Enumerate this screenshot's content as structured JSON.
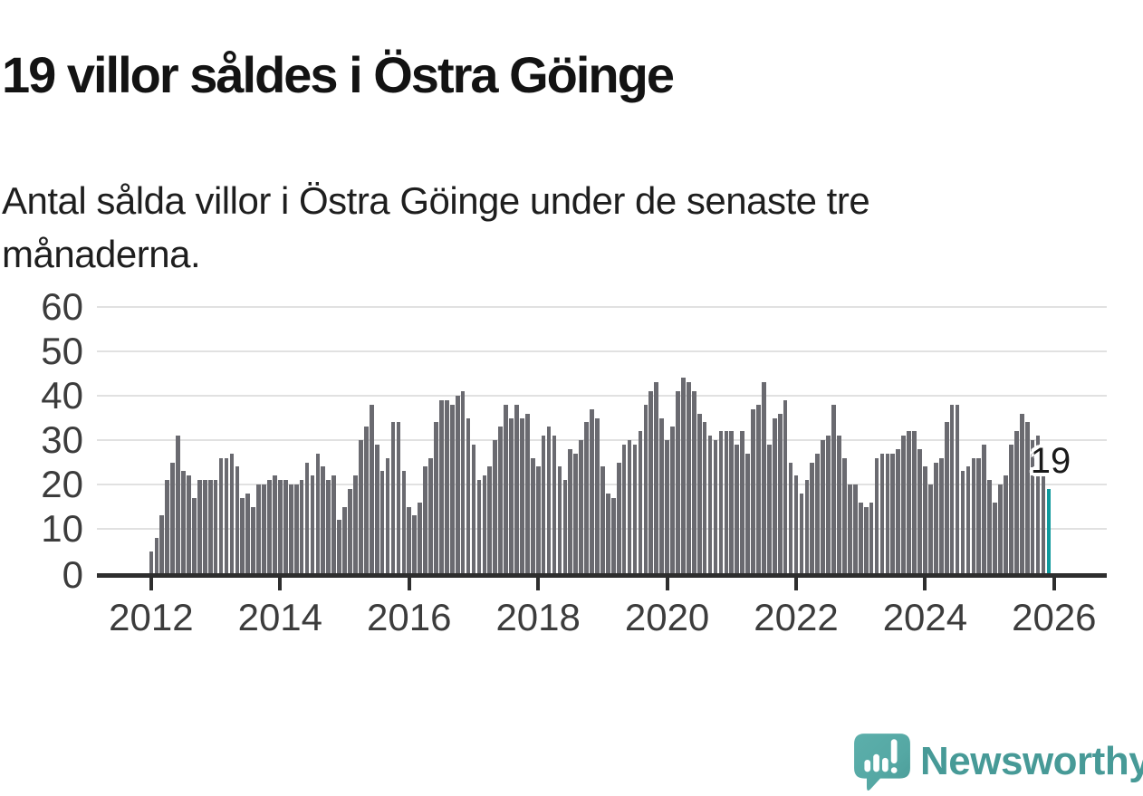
{
  "title": "19 villor såldes i Östra Göinge",
  "subtitle": "Antal sålda villor i Östra Göinge under de senaste tre månaderna.",
  "annotation": {
    "label": "19"
  },
  "branding": {
    "name": "Newsworthy"
  },
  "colors": {
    "bar": "#6a6a70",
    "highlight": "#0f9a9d",
    "gridline": "#e1e1e1",
    "axis": "#2e2e2e",
    "axis_text": "#3c3c3c",
    "title_text": "#131313",
    "brand_teal": "#479a97",
    "brand_icon_fill": "#55a8a4"
  },
  "chart_data": {
    "type": "bar",
    "title": "19 villor såldes i Östra Göinge",
    "subtitle": "Antal sålda villor i Östra Göinge under de senaste tre månaderna.",
    "frequency": "monthly",
    "start": "2012-01",
    "end": "2025-12",
    "ylim": [
      0,
      60
    ],
    "grid": true,
    "y_ticks": [
      0,
      10,
      20,
      30,
      40,
      50,
      60
    ],
    "x_tick_labels": [
      "2012",
      "2014",
      "2016",
      "2018",
      "2020",
      "2022",
      "2024",
      "2026"
    ],
    "highlight_last": true,
    "last_value_label": "19",
    "values": [
      5,
      8,
      13,
      21,
      25,
      31,
      23,
      22,
      17,
      21,
      21,
      21,
      21,
      26,
      26,
      27,
      24,
      17,
      18,
      15,
      20,
      20,
      21,
      22,
      21,
      21,
      20,
      20,
      21,
      25,
      22,
      27,
      24,
      21,
      22,
      12,
      15,
      19,
      22,
      30,
      33,
      38,
      29,
      23,
      26,
      34,
      34,
      23,
      15,
      13,
      16,
      24,
      26,
      34,
      39,
      39,
      38,
      40,
      41,
      35,
      29,
      21,
      22,
      24,
      30,
      33,
      38,
      35,
      38,
      35,
      36,
      26,
      24,
      31,
      33,
      31,
      24,
      21,
      28,
      27,
      30,
      34,
      37,
      35,
      24,
      18,
      17,
      25,
      29,
      30,
      29,
      32,
      38,
      41,
      43,
      35,
      30,
      33,
      41,
      44,
      43,
      41,
      36,
      34,
      31,
      30,
      32,
      32,
      32,
      29,
      32,
      27,
      37,
      38,
      43,
      29,
      35,
      36,
      39,
      25,
      22,
      18,
      21,
      25,
      27,
      30,
      31,
      38,
      31,
      26,
      20,
      20,
      16,
      15,
      16,
      26,
      27,
      27,
      27,
      28,
      31,
      32,
      32,
      28,
      24,
      20,
      25,
      26,
      34,
      38,
      38,
      23,
      24,
      26,
      26,
      29,
      21,
      16,
      20,
      22,
      29,
      32,
      36,
      34,
      30,
      31,
      22,
      19
    ]
  }
}
